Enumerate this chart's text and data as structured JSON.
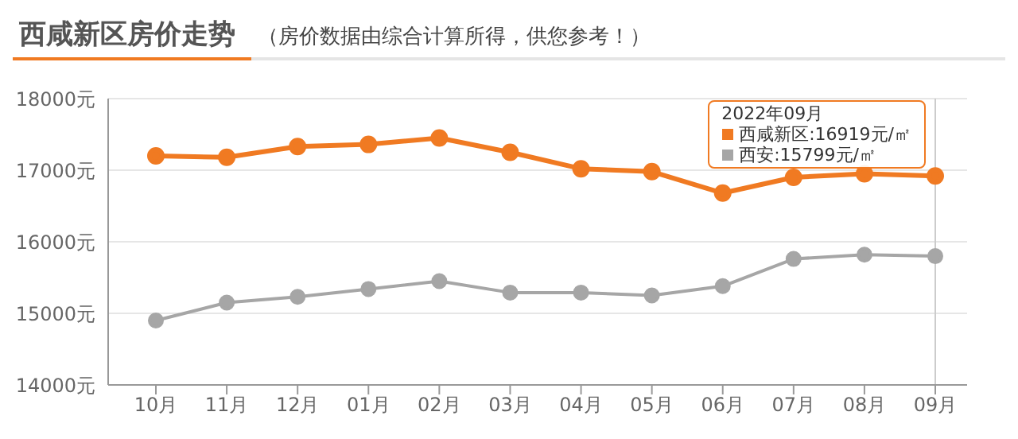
{
  "chart_data": {
    "type": "line",
    "title": "西咸新区房价走势",
    "subtitle": "（房价数据由综合计算所得，供您参考！）",
    "categories": [
      "10月",
      "11月",
      "12月",
      "01月",
      "02月",
      "03月",
      "04月",
      "05月",
      "06月",
      "07月",
      "08月",
      "09月"
    ],
    "series": [
      {
        "name": "西咸新区",
        "color": "#f07a22",
        "values": [
          17200,
          17180,
          17330,
          17360,
          17450,
          17250,
          17020,
          16980,
          16680,
          16900,
          16950,
          16919
        ]
      },
      {
        "name": "西安",
        "color": "#a6a6a6",
        "values": [
          14900,
          15150,
          15230,
          15340,
          15450,
          15290,
          15290,
          15250,
          15380,
          15760,
          15820,
          15799
        ]
      }
    ],
    "annotations": [
      "2022年09月",
      ":16919元/㎡",
      ":15799元/㎡"
    ],
    "ylim": [
      14000,
      18000
    ],
    "yticks": [
      {
        "value": 14000,
        "label": "14000元"
      },
      {
        "value": 15000,
        "label": "15000元"
      },
      {
        "value": 16000,
        "label": "16000元"
      },
      {
        "value": 17000,
        "label": "17000元"
      },
      {
        "value": 18000,
        "label": "18000元"
      }
    ],
    "ref_lines": [
      {
        "axis": "x",
        "value": "09月",
        "color": "#cccccc"
      }
    ],
    "grid": "y",
    "legend": "top right",
    "marker": "circle",
    "line_style": "solid"
  }
}
